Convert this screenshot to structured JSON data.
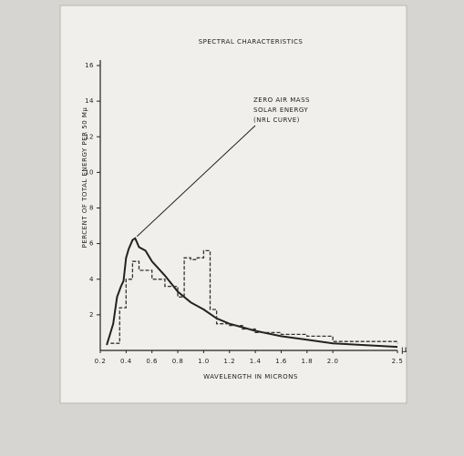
{
  "chart_data": {
    "type": "line",
    "title": "SPECTRAL CHARACTERISTICS",
    "x_label": "WAVELENGTH IN MICRONS",
    "x_unit": "μ",
    "y_label": "PERCENT OF TOTAL ENERGY PER 50 Mμ",
    "annotation": [
      "ZERO AIR MASS",
      "SOLAR ENERGY",
      "(NRL CURVE)"
    ],
    "xlim": [
      0.2,
      2.5
    ],
    "xticks": [
      0.2,
      0.4,
      0.6,
      0.8,
      {
        "value": 1,
        "label": "1.0"
      },
      1.2,
      1.4,
      1.6,
      1.8,
      {
        "value": 2,
        "label": "2.0"
      },
      2.5
    ],
    "ylim": [
      0,
      16
    ],
    "yticks": [
      2,
      4,
      6,
      8,
      10,
      12,
      14,
      16
    ],
    "series": [
      {
        "color": "#222222",
        "style": "solid",
        "x": [
          0.25,
          0.3,
          0.33,
          0.36,
          0.38,
          0.4,
          0.42,
          0.45,
          0.47,
          0.5,
          0.55,
          0.6,
          0.7,
          0.8,
          0.9,
          1.0,
          1.1,
          1.2,
          1.4,
          1.6,
          1.8,
          2.0,
          2.5
        ],
        "values": [
          0.3,
          1.5,
          3.0,
          3.6,
          3.9,
          5.2,
          5.7,
          6.2,
          6.3,
          5.8,
          5.6,
          5.0,
          4.2,
          3.3,
          2.7,
          2.3,
          1.8,
          1.5,
          1.1,
          0.8,
          0.6,
          0.4,
          0.2
        ]
      },
      {
        "color": "#333333",
        "style": "dashed-step",
        "x": [
          0.28,
          0.35,
          0.4,
          0.45,
          0.5,
          0.6,
          0.7,
          0.8,
          0.85,
          0.9,
          0.95,
          1.0,
          1.05,
          1.1,
          1.2,
          1.3,
          1.4,
          1.5,
          1.6,
          1.8,
          2.0,
          2.5
        ],
        "values": [
          0.4,
          2.4,
          4.0,
          5.0,
          4.5,
          4.0,
          3.6,
          3.0,
          5.2,
          5.1,
          5.2,
          5.6,
          2.3,
          1.5,
          1.4,
          1.2,
          1.0,
          1.0,
          0.9,
          0.8,
          0.5,
          0.4
        ]
      }
    ]
  }
}
